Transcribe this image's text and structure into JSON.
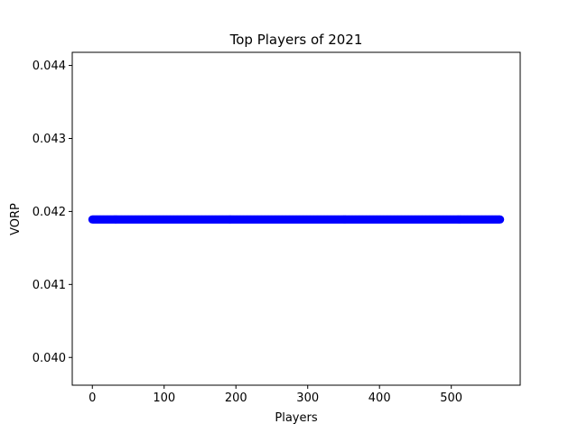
{
  "chart_data": {
    "type": "scatter",
    "title": "Top Players of 2021",
    "xlabel": "Players",
    "ylabel": "VORP",
    "xlim": [
      -28,
      596
    ],
    "ylim": [
      0.03962,
      0.04418
    ],
    "xticks": [
      0,
      100,
      200,
      300,
      400,
      500
    ],
    "xtick_labels": [
      "0",
      "100",
      "200",
      "300",
      "400",
      "500"
    ],
    "yticks": [
      0.04,
      0.041,
      0.042,
      0.043,
      0.044
    ],
    "ytick_labels": [
      "0.040",
      "0.041",
      "0.042",
      "0.043",
      "0.044"
    ],
    "series": [
      {
        "x_start": 0,
        "x_end": 568,
        "x_step": 1,
        "y_constant": 0.04189,
        "color": "#0000ff"
      }
    ],
    "grid": false,
    "legend": "none"
  }
}
